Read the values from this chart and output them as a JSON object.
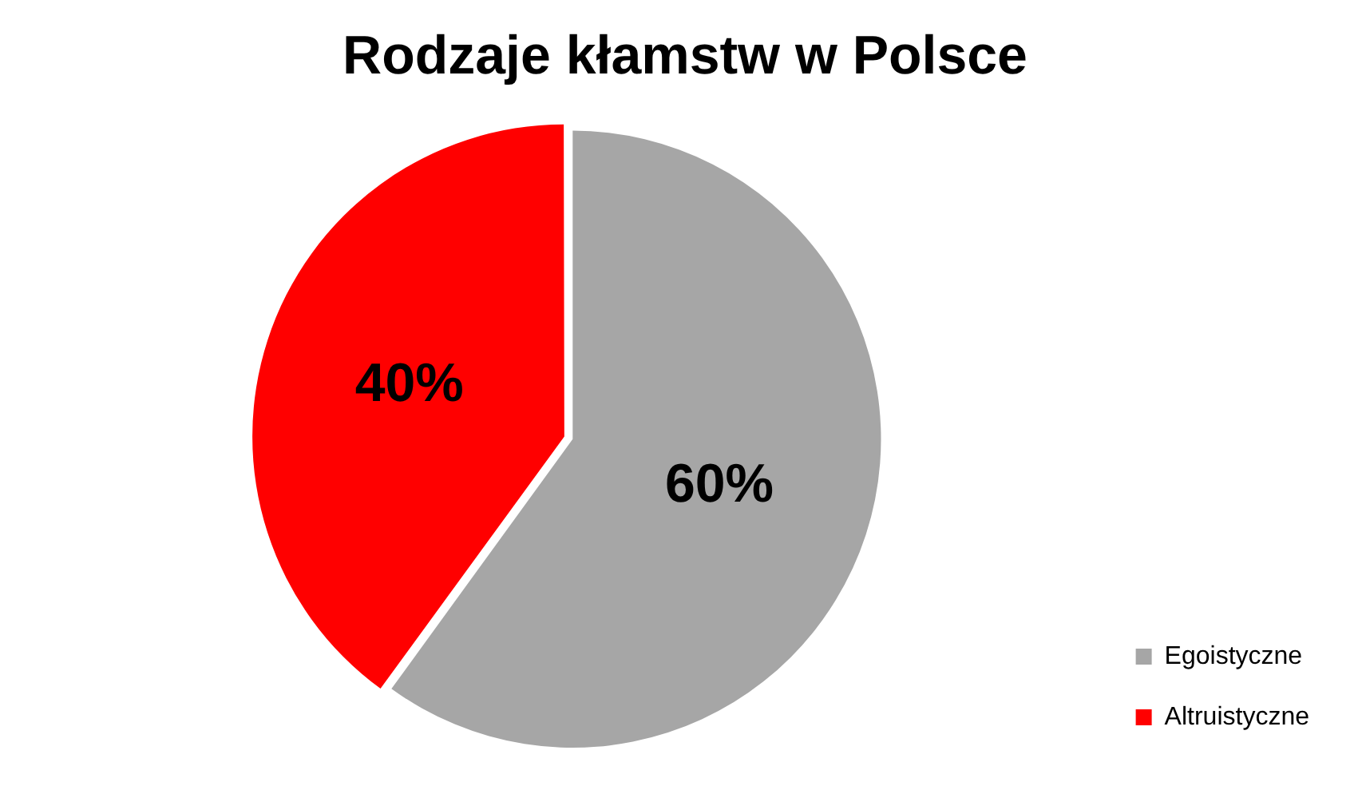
{
  "chart_data": {
    "type": "pie",
    "title": "Rodzaje kłamstw w Polsce",
    "categories": [
      "Egoistyczne",
      "Altruistyczne"
    ],
    "values": [
      60,
      40
    ],
    "value_labels": [
      "60%",
      "40%"
    ],
    "colors": [
      "#a6a6a6",
      "#ff0000"
    ],
    "legend": "bottom right"
  }
}
